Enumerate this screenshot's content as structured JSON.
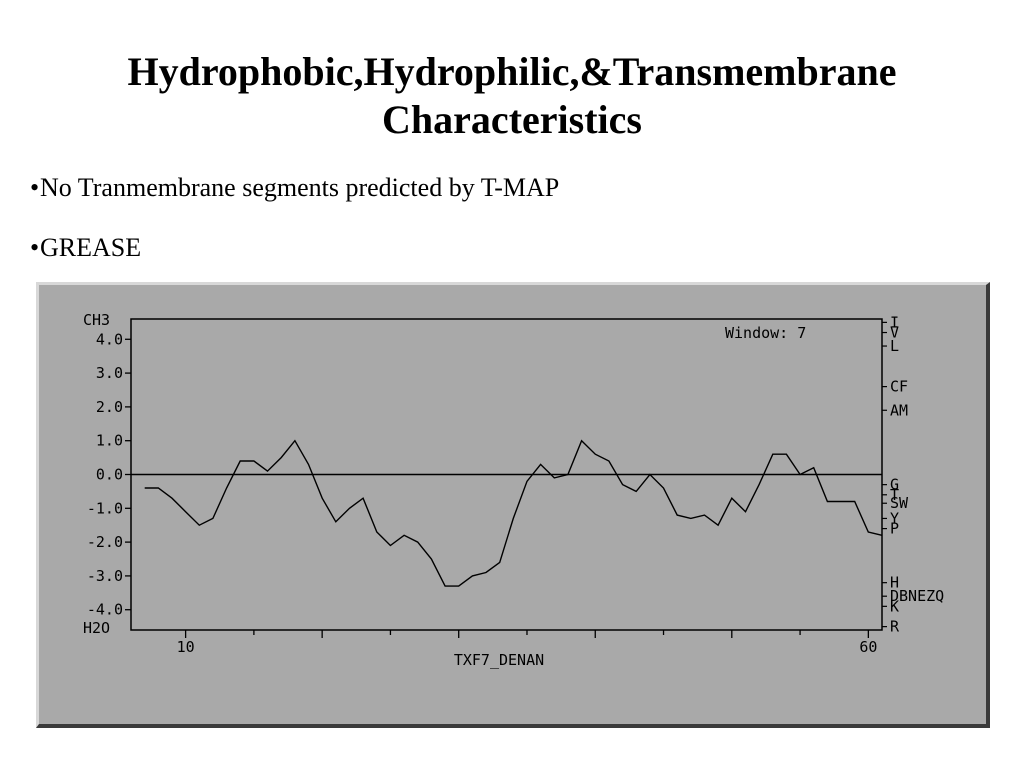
{
  "slide": {
    "title_line1": "Hydrophobic,Hydrophilic,&Transmembrane",
    "title_line2": "Characteristics",
    "bullets": [
      "No Tranmembrane segments predicted by T-MAP",
      "GREASE"
    ]
  },
  "chart_data": {
    "type": "line",
    "window_label": "Window:  7",
    "xlabel": "TXF7_DENAN",
    "top_label": "CH3",
    "bottom_label": "H2O",
    "xlim": [
      6,
      61
    ],
    "ylim": [
      -4.6,
      4.6
    ],
    "x_ticks": [
      10,
      60
    ],
    "y_ticks": [
      "4.0",
      "3.0",
      "2.0",
      "1.0",
      "0.0",
      "-1.0",
      "-2.0",
      "-3.0",
      "-4.0"
    ],
    "right_labels": [
      {
        "text": "I",
        "y": 4.5
      },
      {
        "text": "V",
        "y": 4.2
      },
      {
        "text": "L",
        "y": 3.8
      },
      {
        "text": "CF",
        "y": 2.6
      },
      {
        "text": "AM",
        "y": 1.9
      },
      {
        "text": "G",
        "y": -0.3
      },
      {
        "text": "T",
        "y": -0.6
      },
      {
        "text": "SW",
        "y": -0.85
      },
      {
        "text": "Y",
        "y": -1.3
      },
      {
        "text": "P",
        "y": -1.6
      },
      {
        "text": "H",
        "y": -3.2
      },
      {
        "text": "DBNEZQ",
        "y": -3.6
      },
      {
        "text": "K",
        "y": -3.9
      },
      {
        "text": "R",
        "y": -4.5
      }
    ],
    "series": [
      {
        "points": [
          [
            7,
            -0.4
          ],
          [
            8,
            -0.4
          ],
          [
            9,
            -0.7
          ],
          [
            10,
            -1.1
          ],
          [
            11,
            -1.5
          ],
          [
            12,
            -1.3
          ],
          [
            13,
            -0.4
          ],
          [
            14,
            0.4
          ],
          [
            15,
            0.4
          ],
          [
            16,
            0.1
          ],
          [
            17,
            0.5
          ],
          [
            18,
            1.0
          ],
          [
            19,
            0.3
          ],
          [
            20,
            -0.7
          ],
          [
            21,
            -1.4
          ],
          [
            22,
            -1.0
          ],
          [
            23,
            -0.7
          ],
          [
            24,
            -1.7
          ],
          [
            25,
            -2.1
          ],
          [
            26,
            -1.8
          ],
          [
            27,
            -2.0
          ],
          [
            28,
            -2.5
          ],
          [
            29,
            -3.3
          ],
          [
            30,
            -3.3
          ],
          [
            31,
            -3.0
          ],
          [
            32,
            -2.9
          ],
          [
            33,
            -2.6
          ],
          [
            34,
            -1.3
          ],
          [
            35,
            -0.2
          ],
          [
            36,
            0.3
          ],
          [
            37,
            -0.1
          ],
          [
            38,
            0.0
          ],
          [
            39,
            1.0
          ],
          [
            40,
            0.6
          ],
          [
            41,
            0.4
          ],
          [
            42,
            -0.3
          ],
          [
            43,
            -0.5
          ],
          [
            44,
            0.0
          ],
          [
            45,
            -0.4
          ],
          [
            46,
            -1.2
          ],
          [
            47,
            -1.3
          ],
          [
            48,
            -1.2
          ],
          [
            49,
            -1.5
          ],
          [
            50,
            -0.7
          ],
          [
            51,
            -1.1
          ],
          [
            52,
            -0.3
          ],
          [
            53,
            0.6
          ],
          [
            54,
            0.6
          ],
          [
            55,
            0.0
          ],
          [
            56,
            0.2
          ],
          [
            57,
            -0.8
          ],
          [
            58,
            -0.8
          ],
          [
            59,
            -0.8
          ],
          [
            60,
            -1.7
          ],
          [
            61,
            -1.8
          ]
        ]
      }
    ]
  }
}
